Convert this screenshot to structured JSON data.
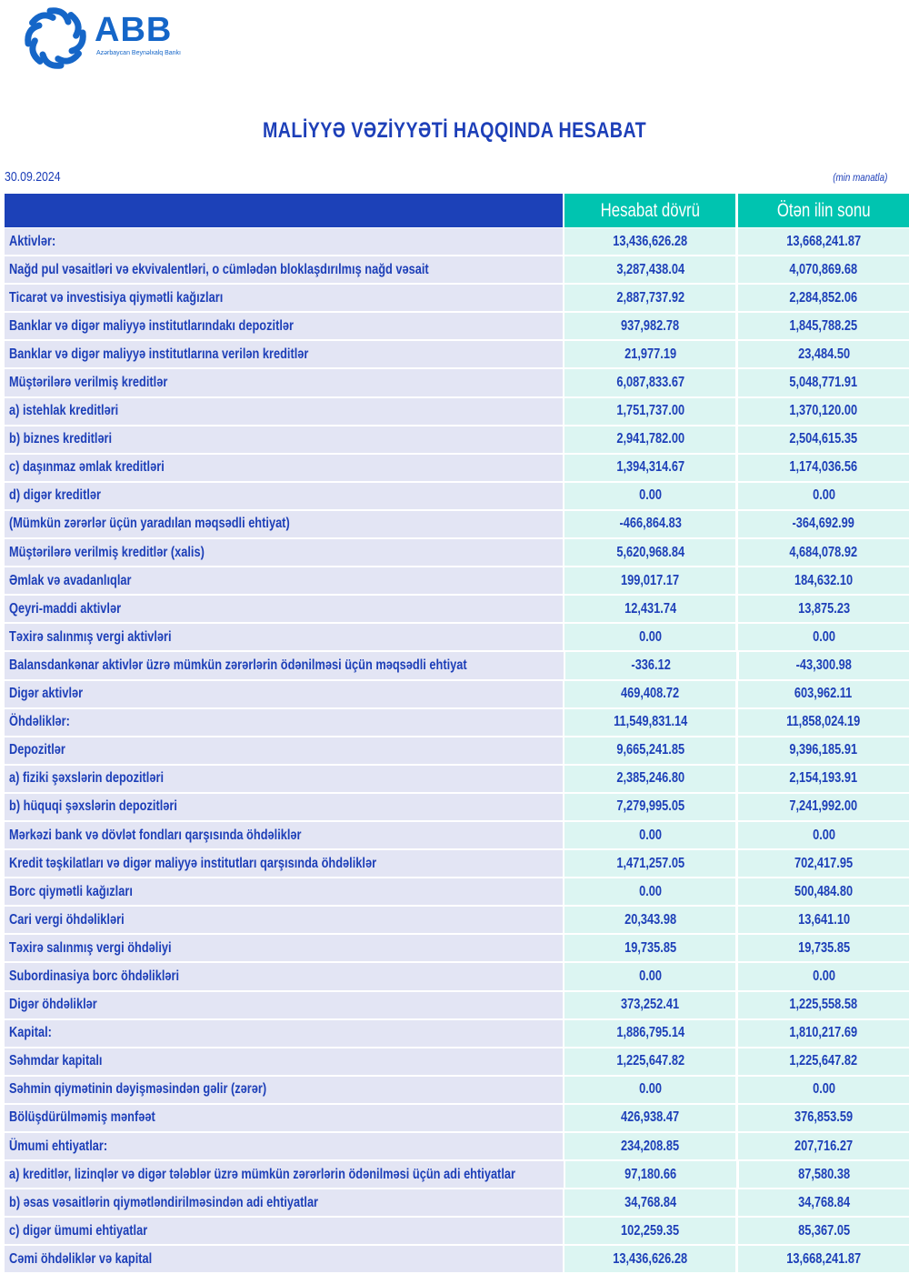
{
  "logo": {
    "name": "ABB",
    "subtitle": "Azərbaycan Beynəlxalq Bankı",
    "color": "#1566c8"
  },
  "title": "MALİYYƏ VƏZİYYƏTİ HAQQINDA HESABAT",
  "date": "30.09.2024",
  "unit": "(min manatla)",
  "colors": {
    "text": "#1d3fb8",
    "header_left": "#1c41b8",
    "header_teal": "#00c4b0",
    "row_label_bg": "#e3e5f4",
    "row_value_bg": "#dcf5f2"
  },
  "columns": [
    "Hesabat dövrü",
    "Ötən ilin sonu"
  ],
  "rows": [
    {
      "label": "Aktivlər:",
      "current": "13,436,626.28",
      "previous": "13,668,241.87"
    },
    {
      "label": "Nağd pul vəsaitləri və  ekvivalentləri, o cümlədən bloklaşdırılmış nağd vəsait",
      "current": "3,287,438.04",
      "previous": "4,070,869.68"
    },
    {
      "label": "Ticarət və investisiya qiymətli kağızları",
      "current": "2,887,737.92",
      "previous": "2,284,852.06"
    },
    {
      "label": "Banklar və digər maliyyə institutlarındakı depozitlər",
      "current": "937,982.78",
      "previous": "1,845,788.25"
    },
    {
      "label": "Banklar və digər maliyyə institutlarına verilən kreditlər",
      "current": "21,977.19",
      "previous": "23,484.50"
    },
    {
      "label": "Müştərilərə verilmiş kreditlər",
      "current": "6,087,833.67",
      "previous": "5,048,771.91"
    },
    {
      "label": "a) istehlak kreditləri",
      "current": "1,751,737.00",
      "previous": "1,370,120.00"
    },
    {
      "label": "b) biznes kreditləri",
      "current": "2,941,782.00",
      "previous": "2,504,615.35"
    },
    {
      "label": "c) daşınmaz əmlak kreditləri",
      "current": "1,394,314.67",
      "previous": "1,174,036.56"
    },
    {
      "label": "d) digər kreditlər",
      "current": "0.00",
      "previous": "0.00"
    },
    {
      "label": "(Mümkün zərərlər üçün yaradılan məqsədli ehtiyat)",
      "current": "-466,864.83",
      "previous": "-364,692.99"
    },
    {
      "label": "Müştərilərə verilmiş kreditlər (xalis)",
      "current": "5,620,968.84",
      "previous": "4,684,078.92"
    },
    {
      "label": "Əmlak və avadanlıqlar",
      "current": "199,017.17",
      "previous": "184,632.10"
    },
    {
      "label": "Qeyri-maddi aktivlər",
      "current": "12,431.74",
      "previous": "13,875.23"
    },
    {
      "label": "Təxirə salınmış vergi aktivləri",
      "current": "0.00",
      "previous": "0.00"
    },
    {
      "label": "Balansdankənar aktivlər üzrə mümkün zərərlərin ödənilməsi üçün məqsədli ehtiyat",
      "current": "-336.12",
      "previous": "-43,300.98"
    },
    {
      "label": "Digər aktivlər",
      "current": "469,408.72",
      "previous": "603,962.11"
    },
    {
      "label": "Öhdəliklər:",
      "current": "11,549,831.14",
      "previous": "11,858,024.19"
    },
    {
      "label": "Depozitlər",
      "current": "9,665,241.85",
      "previous": "9,396,185.91"
    },
    {
      "label": "a) fiziki şəxslərin depozitləri",
      "current": "2,385,246.80",
      "previous": "2,154,193.91"
    },
    {
      "label": "b) hüquqi şəxslərin depozitləri",
      "current": "7,279,995.05",
      "previous": "7,241,992.00"
    },
    {
      "label": "Mərkəzi bank və dövlət fondları qarşısında öhdəliklər",
      "current": "0.00",
      "previous": "0.00"
    },
    {
      "label": "Kredit təşkilatları və digər maliyyə institutları qarşısında öhdəliklər",
      "current": "1,471,257.05",
      "previous": "702,417.95"
    },
    {
      "label": "Borc qiymətli kağızları",
      "current": "0.00",
      "previous": "500,484.80"
    },
    {
      "label": "Cari vergi öhdəlikləri",
      "current": "20,343.98",
      "previous": "13,641.10"
    },
    {
      "label": "Təxirə salınmış vergi öhdəliyi",
      "current": "19,735.85",
      "previous": "19,735.85"
    },
    {
      "label": "Subordinasiya borc öhdəlikləri",
      "current": "0.00",
      "previous": "0.00"
    },
    {
      "label": "Digər öhdəliklər",
      "current": "373,252.41",
      "previous": "1,225,558.58"
    },
    {
      "label": "Kapital:",
      "current": "1,886,795.14",
      "previous": "1,810,217.69"
    },
    {
      "label": "Səhmdar kapitalı",
      "current": "1,225,647.82",
      "previous": "1,225,647.82"
    },
    {
      "label": "Səhmin qiymətinin dəyişməsindən gəlir (zərər)",
      "current": "0.00",
      "previous": "0.00"
    },
    {
      "label": "Bölüşdürülməmiş mənfəət",
      "current": "426,938.47",
      "previous": "376,853.59"
    },
    {
      "label": "Ümumi ehtiyatlar:",
      "current": "234,208.85",
      "previous": "207,716.27"
    },
    {
      "label": "a) kreditlər, lizinqlər və digər tələblər üzrə mümkün zərərlərin ödənilməsi üçün adi ehtiyatlar",
      "current": "97,180.66",
      "previous": "87,580.38"
    },
    {
      "label": "b) əsas vəsaitlərin qiymətləndirilməsindən adi ehtiyatlar",
      "current": "34,768.84",
      "previous": "34,768.84"
    },
    {
      "label": "c) digər ümumi ehtiyatlar",
      "current": "102,259.35",
      "previous": "85,367.05"
    },
    {
      "label": "Cəmi öhdəliklər və kapital",
      "current": "13,436,626.28",
      "previous": "13,668,241.87"
    }
  ]
}
